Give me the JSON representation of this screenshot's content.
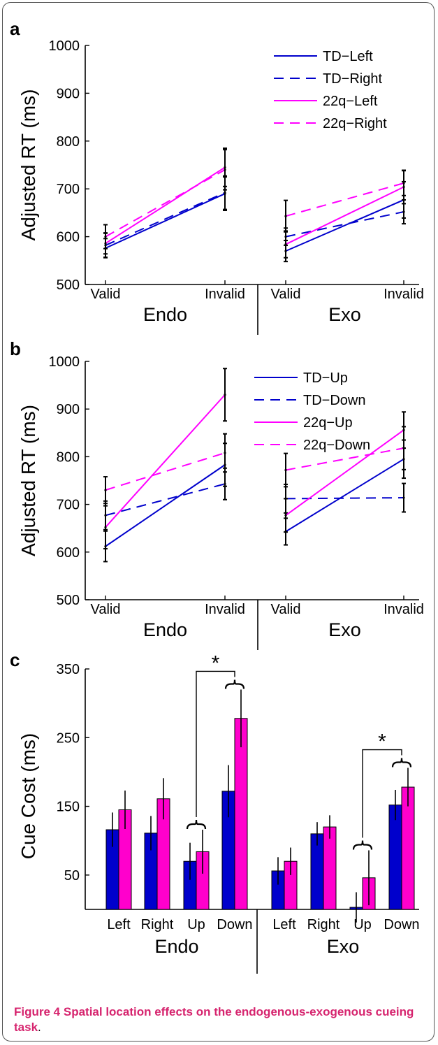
{
  "chart_data": [
    {
      "panel": "a",
      "type": "line",
      "ylabel": "Adjusted RT (ms)",
      "ylim": [
        500,
        1000
      ],
      "yticks": [
        500,
        600,
        700,
        800,
        900,
        1000
      ],
      "groups": [
        {
          "label": "Endo",
          "x": [
            "Valid",
            "Invalid"
          ]
        },
        {
          "label": "Exo",
          "x": [
            "Valid",
            "Invalid"
          ]
        }
      ],
      "legend": "top-right",
      "series": [
        {
          "name": "TD−Left",
          "color": "#0000cc",
          "dash": "solid",
          "values": [
            [
              576,
              690
            ],
            [
              570,
              677
            ]
          ],
          "err": [
            [
              20,
              35
            ],
            [
              22,
              38
            ]
          ]
        },
        {
          "name": "TD−Right",
          "color": "#0000cc",
          "dash": "dashed",
          "values": [
            [
              582,
              692
            ],
            [
              600,
              652
            ]
          ],
          "err": [
            [
              25,
              35
            ],
            [
              18,
              25
            ]
          ]
        },
        {
          "name": "22q−Left",
          "color": "#ff00ff",
          "dash": "solid",
          "values": [
            [
              586,
              745
            ],
            [
              584,
              704
            ]
          ],
          "err": [
            [
              22,
              40
            ],
            [
              28,
              35
            ]
          ]
        },
        {
          "name": "22q−Right",
          "color": "#ff00ff",
          "dash": "dashed",
          "values": [
            [
              600,
              740
            ],
            [
              643,
              712
            ]
          ],
          "err": [
            [
              25,
              42
            ],
            [
              33,
              26
            ]
          ]
        }
      ]
    },
    {
      "panel": "b",
      "type": "line",
      "ylabel": "Adjusted RT (ms)",
      "ylim": [
        500,
        1000
      ],
      "yticks": [
        500,
        600,
        700,
        800,
        900,
        1000
      ],
      "groups": [
        {
          "label": "Endo",
          "x": [
            "Valid",
            "Invalid"
          ]
        },
        {
          "label": "Exo",
          "x": [
            "Valid",
            "Invalid"
          ]
        }
      ],
      "legend": "top-right",
      "series": [
        {
          "name": "TD−Up",
          "color": "#0000cc",
          "dash": "solid",
          "values": [
            [
              612,
              783
            ],
            [
              643,
              795
            ]
          ],
          "err": [
            [
              32,
              45
            ],
            [
              28,
              40
            ]
          ]
        },
        {
          "name": "TD−Down",
          "color": "#0000cc",
          "dash": "dashed",
          "values": [
            [
              677,
              743
            ],
            [
              712,
              714
            ]
          ],
          "err": [
            [
              30,
              33
            ],
            [
              30,
              30
            ]
          ]
        },
        {
          "name": "22q−Up",
          "color": "#ff00ff",
          "dash": "solid",
          "values": [
            [
              652,
              930
            ],
            [
              677,
              856
            ]
          ],
          "err": [
            [
              45,
              55
            ],
            [
              35,
              38
            ]
          ]
        },
        {
          "name": "22q−Down",
          "color": "#ff00ff",
          "dash": "dashed",
          "values": [
            [
              730,
              808
            ],
            [
              772,
              818
            ]
          ],
          "err": [
            [
              28,
              40
            ],
            [
              35,
              45
            ]
          ]
        }
      ]
    },
    {
      "panel": "c",
      "type": "bar",
      "ylabel": "Cue Cost (ms)",
      "ylim": [
        0,
        350
      ],
      "yticks": [
        50,
        150,
        250,
        350
      ],
      "groups": [
        {
          "label": "Endo",
          "categories": [
            "Left",
            "Right",
            "Up",
            "Down"
          ]
        },
        {
          "label": "Exo",
          "categories": [
            "Left",
            "Right",
            "Up",
            "Down"
          ]
        }
      ],
      "series": [
        {
          "name": "TD",
          "color": "#0000cc",
          "values": [
            [
              116,
              111,
              70,
              172
            ],
            [
              56,
              110,
              3,
              152
            ]
          ],
          "err": [
            [
              25,
              25,
              27,
              38
            ],
            [
              20,
              17,
              22,
              22
            ]
          ]
        },
        {
          "name": "22q",
          "color": "#ff00cc",
          "values": [
            [
              145,
              161,
              84,
              278
            ],
            [
              70,
              120,
              46,
              178
            ]
          ],
          "err": [
            [
              28,
              30,
              32,
              42
            ],
            [
              20,
              17,
              40,
              28
            ]
          ]
        }
      ],
      "annotations": [
        {
          "text": "*",
          "between": [
            "Endo Up",
            "Endo Down"
          ]
        },
        {
          "text": "*",
          "between": [
            "Exo Up",
            "Exo Down"
          ]
        }
      ]
    }
  ],
  "caption": {
    "label": "Figure 4",
    "title": "Spatial location effects on the endogenous-exogenous cueing task",
    "end": "."
  }
}
